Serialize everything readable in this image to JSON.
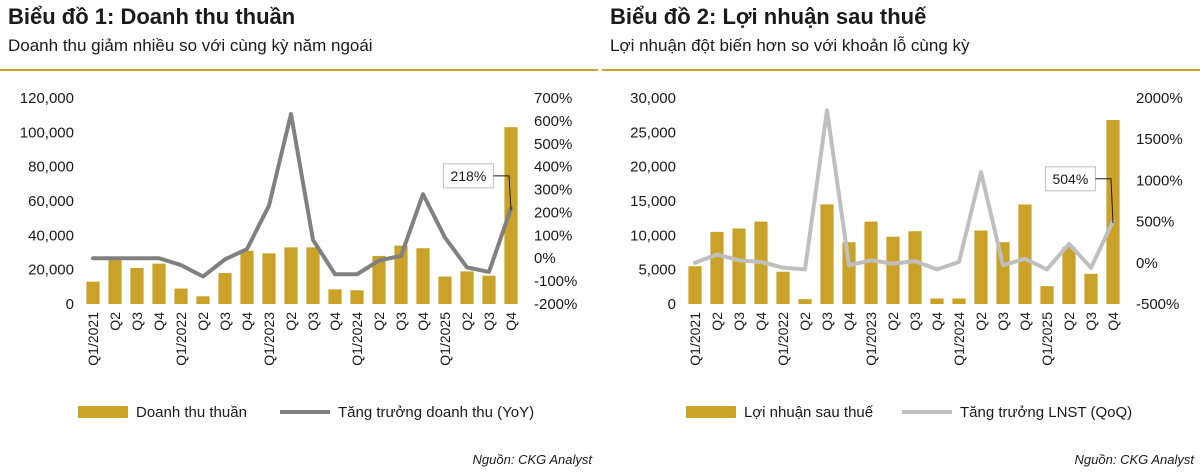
{
  "charts": [
    {
      "title": "Biểu đồ 1: Doanh thu thuần",
      "subtitle": "Doanh thu giảm nhiều so với cùng kỳ năm ngoái",
      "source": "Nguồn: CKG Analyst"
    },
    {
      "title": "Biểu đồ 2: Lợi nhuận sau thuế",
      "subtitle": "Lợi nhuận đột biến hơn so với khoản lỗ cùng kỳ",
      "source": "Nguồn: CKG Analyst"
    }
  ],
  "colors": {
    "accent": "#c9a227",
    "bar": "#c9a227",
    "line1": "#808080",
    "line2": "#bfbfbf"
  },
  "chart_data": [
    {
      "type": "bar",
      "categories": [
        "Q1/2021",
        "Q2",
        "Q3",
        "Q4",
        "Q1/2022",
        "Q2",
        "Q3",
        "Q4",
        "Q1/2023",
        "Q2",
        "Q3",
        "Q4",
        "Q1/2024",
        "Q2",
        "Q3",
        "Q4",
        "Q1/2025",
        "Q2",
        "Q3",
        "Q4"
      ],
      "series": [
        {
          "name": "Doanh thu thuần",
          "kind": "bar",
          "axis": "left",
          "values": [
            13000,
            26000,
            21000,
            23500,
            9000,
            4500,
            18000,
            31000,
            29500,
            33000,
            33000,
            8500,
            8000,
            28000,
            34000,
            32500,
            16000,
            19000,
            16500,
            103000
          ]
        },
        {
          "name": "Tăng trưởng doanh thu (YoY)",
          "kind": "line",
          "axis": "right",
          "values": [
            0,
            0,
            0,
            0,
            -30,
            -80,
            -5,
            40,
            230,
            630,
            80,
            -70,
            -70,
            -10,
            10,
            280,
            90,
            -40,
            -60,
            218
          ]
        }
      ],
      "left_axis": {
        "min": 0,
        "max": 120000,
        "ticks": [
          "0",
          "20,000",
          "40,000",
          "60,000",
          "80,000",
          "100,000",
          "120,000"
        ]
      },
      "right_axis": {
        "min": -200,
        "max": 700,
        "ticks": [
          "-200%",
          "-100%",
          "0%",
          "100%",
          "200%",
          "300%",
          "400%",
          "500%",
          "600%",
          "700%"
        ]
      },
      "annotation": {
        "text": "218%",
        "index": 19
      },
      "legend_position": "bottom"
    },
    {
      "type": "bar",
      "categories": [
        "Q1/2021",
        "Q2",
        "Q3",
        "Q4",
        "Q1/2022",
        "Q2",
        "Q3",
        "Q4",
        "Q1/2023",
        "Q2",
        "Q3",
        "Q4",
        "Q1/2024",
        "Q2",
        "Q3",
        "Q4",
        "Q1/2025",
        "Q2",
        "Q3",
        "Q4"
      ],
      "series": [
        {
          "name": "Lợi nhuận sau thuế",
          "kind": "bar",
          "axis": "left",
          "values": [
            5500,
            10500,
            11000,
            12000,
            4700,
            700,
            14500,
            9000,
            12000,
            9800,
            10600,
            800,
            800,
            10700,
            9000,
            14500,
            2600,
            8300,
            4400,
            26800
          ]
        },
        {
          "name": "Tăng trưởng LNST (QoQ)",
          "kind": "line",
          "axis": "right",
          "values": [
            0,
            100,
            30,
            10,
            -60,
            -80,
            1850,
            -30,
            30,
            -10,
            20,
            -80,
            10,
            1100,
            -30,
            50,
            -80,
            230,
            -60,
            504
          ]
        }
      ],
      "left_axis": {
        "min": 0,
        "max": 30000,
        "ticks": [
          "0",
          "5,000",
          "10,000",
          "15,000",
          "20,000",
          "25,000",
          "30,000"
        ]
      },
      "right_axis": {
        "min": -500,
        "max": 2000,
        "ticks": [
          "-500%",
          "0%",
          "500%",
          "1000%",
          "1500%",
          "2000%"
        ]
      },
      "annotation": {
        "text": "504%",
        "index": 19
      },
      "legend_position": "bottom"
    }
  ]
}
